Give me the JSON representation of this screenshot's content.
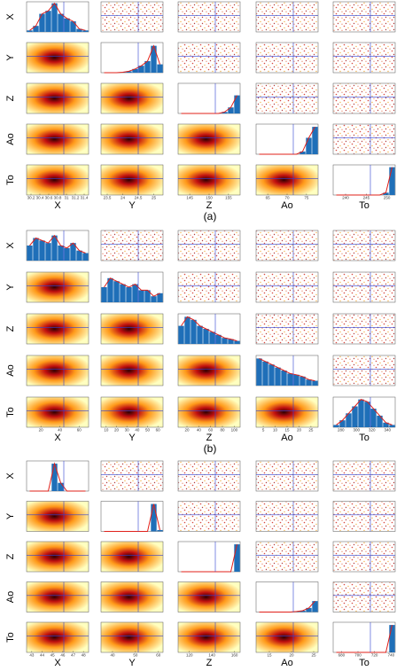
{
  "panels": [
    {
      "label": "(a)",
      "variables": [
        "X",
        "Y",
        "Z",
        "Ao",
        "To"
      ],
      "xticks": [
        [
          30.2,
          30.4,
          30.6,
          30.8,
          31,
          31.2,
          31.4
        ],
        [
          23.5,
          24,
          24.5,
          25
        ],
        [
          145,
          150,
          155
        ],
        [
          65,
          70,
          75
        ],
        [
          240,
          245,
          250
        ]
      ],
      "xlims": [
        [
          30.1,
          31.5
        ],
        [
          23.3,
          25.3
        ],
        [
          142,
          158
        ],
        [
          62,
          78
        ],
        [
          237,
          252
        ]
      ],
      "histograms": [
        {
          "values": [
            5,
            20,
            60,
            70,
            95,
            60,
            45,
            35,
            10,
            5
          ],
          "ylim": [
            0,
            100
          ]
        },
        {
          "values": [
            0,
            0,
            0,
            100,
            300,
            800,
            1500,
            2500,
            5800,
            1800
          ],
          "ylim": [
            0,
            6500
          ]
        },
        {
          "values": [
            0,
            0,
            0,
            0,
            0,
            0,
            0,
            50,
            200,
            600
          ],
          "ylim": [
            0,
            1000
          ]
        },
        {
          "values": [
            0,
            0,
            0,
            0,
            0,
            0,
            0,
            10,
            60,
            100
          ],
          "ylim": [
            0,
            110
          ]
        },
        {
          "values": [
            0,
            0,
            0,
            0,
            0,
            0,
            0,
            0,
            500,
            6000
          ],
          "ylim": [
            0,
            6500
          ]
        }
      ]
    },
    {
      "label": "(b)",
      "variables": [
        "X",
        "Y",
        "Z",
        "Ao",
        "To"
      ],
      "xticks": [
        [
          20,
          40,
          60
        ],
        [
          10,
          20,
          30,
          40,
          50,
          60
        ],
        [
          20,
          40,
          60,
          80,
          100
        ],
        [
          5,
          10,
          15,
          20,
          25
        ],
        [
          280,
          300,
          320,
          340
        ]
      ],
      "xlims": [
        [
          5,
          70
        ],
        [
          5,
          65
        ],
        [
          5,
          110
        ],
        [
          2,
          28
        ],
        [
          270,
          350
        ]
      ],
      "histograms": [
        {
          "values": [
            30,
            45,
            40,
            35,
            50,
            30,
            25,
            35,
            20,
            15
          ],
          "ylim": [
            0,
            60
          ]
        },
        {
          "values": [
            25,
            40,
            35,
            30,
            25,
            30,
            20,
            20,
            10,
            15
          ],
          "ylim": [
            0,
            50
          ]
        },
        {
          "values": [
            30,
            45,
            40,
            30,
            25,
            20,
            15,
            10,
            8,
            5
          ],
          "ylim": [
            0,
            50
          ]
        },
        {
          "values": [
            45,
            40,
            35,
            30,
            25,
            20,
            18,
            15,
            10,
            8
          ],
          "ylim": [
            0,
            50
          ]
        },
        {
          "values": [
            5,
            15,
            30,
            45,
            60,
            55,
            40,
            25,
            10,
            5
          ],
          "ylim": [
            0,
            65
          ]
        }
      ]
    },
    {
      "variables": [
        "X",
        "Y",
        "Z",
        "Ao",
        "To"
      ],
      "xticks": [
        [
          43,
          44,
          45,
          46,
          47,
          48
        ],
        [
          40,
          50,
          60
        ],
        [
          120,
          140,
          160
        ],
        [
          15,
          20,
          25
        ],
        [
          680,
          700,
          720,
          740
        ]
      ],
      "xlims": [
        [
          42.5,
          48.5
        ],
        [
          35,
          62
        ],
        [
          110,
          165
        ],
        [
          12,
          26
        ],
        [
          670,
          745
        ]
      ],
      "histograms": [
        {
          "values": [
            0,
            0,
            0,
            0,
            100,
            30,
            0,
            0,
            0,
            0
          ],
          "ylim": [
            0,
            110
          ]
        },
        {
          "values": [
            0,
            0,
            0,
            0,
            0,
            0,
            0,
            0,
            100,
            5
          ],
          "ylim": [
            0,
            110
          ]
        },
        {
          "values": [
            0,
            0,
            0,
            0,
            0,
            0,
            0,
            0,
            0,
            100
          ],
          "ylim": [
            0,
            110
          ]
        },
        {
          "values": [
            0,
            0,
            0,
            0,
            0,
            0,
            2,
            5,
            15,
            40
          ],
          "ylim": [
            0,
            110
          ]
        },
        {
          "values": [
            0,
            0,
            0,
            0,
            0,
            0,
            0,
            0,
            0,
            100
          ],
          "ylim": [
            0,
            110
          ]
        }
      ]
    }
  ]
}
